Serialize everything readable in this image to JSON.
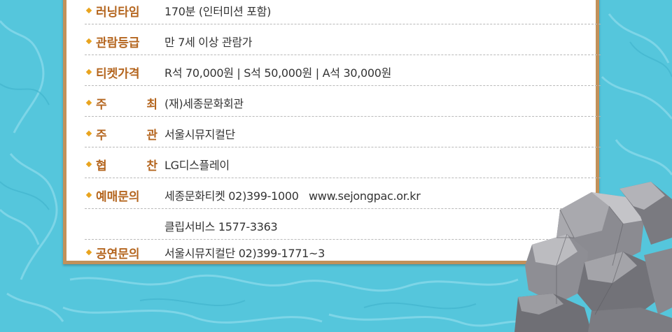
{
  "colors": {
    "background": "#55c6dc",
    "panel_border": "#c2915a",
    "label": "#b4651e",
    "bullet": "#e9a41f",
    "value_text": "#333333"
  },
  "info": {
    "running_time": {
      "label": "러닝타임",
      "value": "170분 (인터미션 포함)"
    },
    "age_rating": {
      "label": "관람등급",
      "value": "만 7세 이상 관람가"
    },
    "ticket_price": {
      "label": "티켓가격",
      "value": "R석 70,000원 | S석 50,000원 | A석 30,000원"
    },
    "host": {
      "label_chars": [
        "주",
        "최"
      ],
      "value": "(재)세종문화회관"
    },
    "organizer": {
      "label_chars": [
        "주",
        "관"
      ],
      "value": "서울시뮤지컬단"
    },
    "sponsor": {
      "label_chars": [
        "협",
        "찬"
      ],
      "value": "LG디스플레이"
    },
    "booking": {
      "label": "예매문의",
      "value": "세종문화티켓 02)399-1000   www.sejongpac.or.kr",
      "value2": "클립서비스 1577-3363"
    },
    "performance_inquiry": {
      "label": "공연문의",
      "value": "서울시뮤지컬단 02)399-1771~3"
    }
  },
  "decorations": [
    "water-caustics",
    "grey-rocks"
  ]
}
